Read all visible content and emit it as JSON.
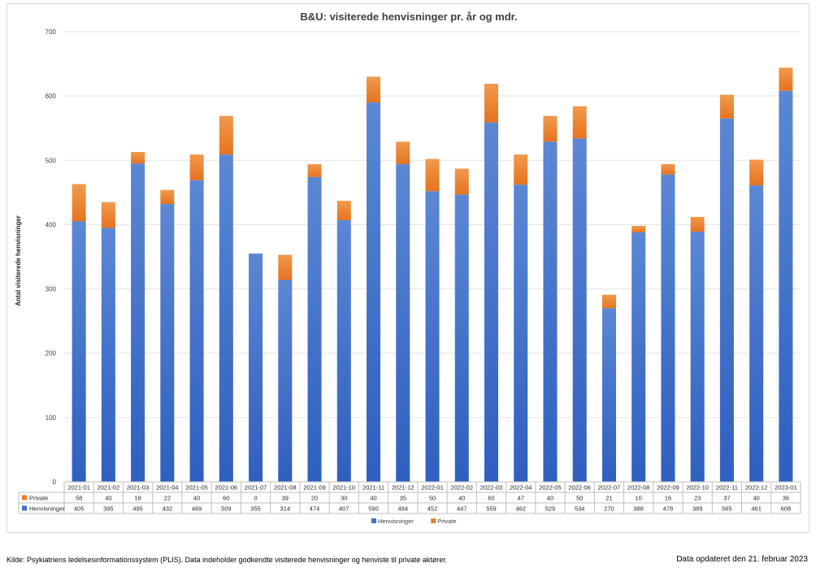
{
  "chart_data": {
    "type": "bar",
    "stacked": true,
    "title": "B&U: visiterede henvisninger pr. år og mdr.",
    "ylabel": "Antal visiterede henvisninger",
    "xlabel": "",
    "ylim": [
      0,
      700
    ],
    "yticks": [
      0,
      100,
      200,
      300,
      400,
      500,
      600,
      700
    ],
    "grid": true,
    "legend_position": "bottom",
    "data_table": true,
    "categories": [
      "2021-01",
      "2021-02",
      "2021-03",
      "2021-04",
      "2021-05",
      "2021-06",
      "2021-07",
      "2021-08",
      "2021-09",
      "2021-10",
      "2021-11",
      "2021-12",
      "2022-01",
      "2022-02",
      "2022-03",
      "2022-04",
      "2022-05",
      "2022-06",
      "2022-07",
      "2022-08",
      "2022-09",
      "2022-10",
      "2022-11",
      "2022-12",
      "2023-01"
    ],
    "series": [
      {
        "name": "Henvisninger",
        "color": "#4472c4",
        "values": [
          405,
          395,
          495,
          432,
          469,
          509,
          355,
          314,
          474,
          407,
          590,
          494,
          452,
          447,
          559,
          462,
          529,
          534,
          270,
          388,
          478,
          389,
          565,
          461,
          608
        ]
      },
      {
        "name": "Private",
        "color": "#ed7d31",
        "values": [
          58,
          40,
          18,
          22,
          40,
          60,
          0,
          39,
          20,
          30,
          40,
          35,
          50,
          40,
          60,
          47,
          40,
          50,
          21,
          10,
          16,
          23,
          37,
          40,
          36
        ]
      }
    ],
    "table_row_order": [
      "Private",
      "Henvisninger"
    ]
  },
  "footer": {
    "source": "Kilde: Psykiatriens ledelsesinformationssystem (PLIS). Data indeholder godkendte visiterede henvisninger og henviste til private aktører.",
    "updated": "Data opdateret den 21. februar 2023"
  }
}
